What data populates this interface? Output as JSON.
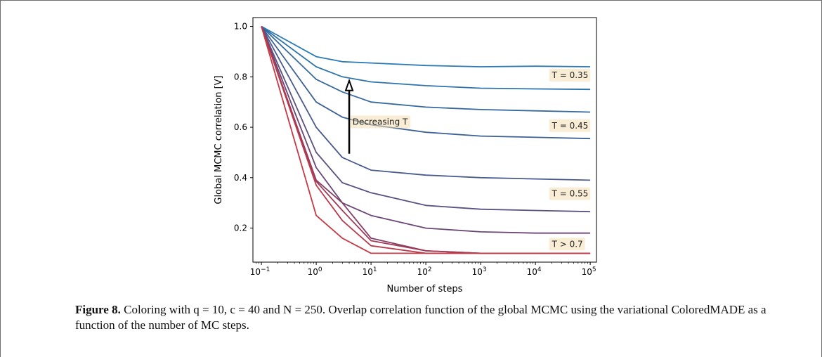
{
  "caption": {
    "label": "Figure 8.",
    "text": "Coloring with q = 10, c = 40 and N = 250. Overlap correlation function of the global MCMC using the variational ColoredMADE as a function of the number of MC steps."
  },
  "chart_data": {
    "type": "line",
    "title": "",
    "xlabel": "Number of steps",
    "ylabel": "Global MCMC correlation [V]",
    "xscale": "log",
    "xlim": [
      0.07,
      130000
    ],
    "ylim": [
      0.065,
      1.035
    ],
    "xticks": [
      {
        "value": 0.1,
        "base": "10",
        "exp": "−1"
      },
      {
        "value": 1,
        "base": "10",
        "exp": "0"
      },
      {
        "value": 10,
        "base": "10",
        "exp": "1"
      },
      {
        "value": 100,
        "base": "10",
        "exp": "2"
      },
      {
        "value": 1000,
        "base": "10",
        "exp": "3"
      },
      {
        "value": 10000,
        "base": "10",
        "exp": "4"
      },
      {
        "value": 100000,
        "base": "10",
        "exp": "5"
      }
    ],
    "yticks": [
      {
        "value": 0.2,
        "label": "0.2"
      },
      {
        "value": 0.4,
        "label": "0.4"
      },
      {
        "value": 0.6,
        "label": "0.6"
      },
      {
        "value": 0.8,
        "label": "0.8"
      },
      {
        "value": 1.0,
        "label": "1.0"
      }
    ],
    "grid": false,
    "series": [
      {
        "color": "#2c7bb6",
        "points": [
          [
            0.1,
            1.0
          ],
          [
            1,
            0.88
          ],
          [
            3,
            0.86
          ],
          [
            10,
            0.855
          ],
          [
            100,
            0.845
          ],
          [
            1000,
            0.84
          ],
          [
            10000,
            0.842
          ],
          [
            100000,
            0.84
          ]
        ]
      },
      {
        "color": "#2f73ab",
        "points": [
          [
            0.1,
            1.0
          ],
          [
            1,
            0.84
          ],
          [
            3,
            0.8
          ],
          [
            10,
            0.78
          ],
          [
            100,
            0.765
          ],
          [
            1000,
            0.755
          ],
          [
            10000,
            0.752
          ],
          [
            100000,
            0.75
          ]
        ]
      },
      {
        "color": "#36699d",
        "points": [
          [
            0.1,
            1.0
          ],
          [
            1,
            0.79
          ],
          [
            3,
            0.74
          ],
          [
            10,
            0.7
          ],
          [
            100,
            0.68
          ],
          [
            1000,
            0.67
          ],
          [
            10000,
            0.665
          ],
          [
            100000,
            0.66
          ]
        ]
      },
      {
        "color": "#3d6196",
        "points": [
          [
            0.1,
            1.0
          ],
          [
            1,
            0.7
          ],
          [
            3,
            0.64
          ],
          [
            10,
            0.61
          ],
          [
            100,
            0.58
          ],
          [
            1000,
            0.565
          ],
          [
            10000,
            0.56
          ],
          [
            100000,
            0.555
          ]
        ]
      },
      {
        "color": "#4a5a8d",
        "points": [
          [
            0.1,
            1.0
          ],
          [
            1,
            0.6
          ],
          [
            3,
            0.48
          ],
          [
            10,
            0.43
          ],
          [
            100,
            0.41
          ],
          [
            1000,
            0.4
          ],
          [
            10000,
            0.395
          ],
          [
            100000,
            0.39
          ]
        ]
      },
      {
        "color": "#5a5183",
        "points": [
          [
            0.1,
            1.0
          ],
          [
            1,
            0.5
          ],
          [
            3,
            0.38
          ],
          [
            10,
            0.34
          ],
          [
            100,
            0.29
          ],
          [
            1000,
            0.275
          ],
          [
            10000,
            0.27
          ],
          [
            100000,
            0.265
          ]
        ]
      },
      {
        "color": "#6a4776",
        "points": [
          [
            0.1,
            1.0
          ],
          [
            1,
            0.44
          ],
          [
            3,
            0.3
          ],
          [
            10,
            0.25
          ],
          [
            100,
            0.2
          ],
          [
            1000,
            0.185
          ],
          [
            10000,
            0.18
          ],
          [
            100000,
            0.18
          ]
        ]
      },
      {
        "color": "#843e66",
        "points": [
          [
            0.1,
            1.0
          ],
          [
            1,
            0.39
          ],
          [
            3,
            0.3
          ],
          [
            10,
            0.16
          ],
          [
            100,
            0.11
          ],
          [
            1000,
            0.1
          ],
          [
            10000,
            0.1
          ],
          [
            100000,
            0.1
          ]
        ]
      },
      {
        "color": "#a23a55",
        "points": [
          [
            0.1,
            1.0
          ],
          [
            1,
            0.385
          ],
          [
            3,
            0.27
          ],
          [
            10,
            0.15
          ],
          [
            100,
            0.11
          ],
          [
            1000,
            0.1
          ],
          [
            10000,
            0.1
          ],
          [
            100000,
            0.1
          ]
        ]
      },
      {
        "color": "#b8394b",
        "points": [
          [
            0.1,
            1.0
          ],
          [
            1,
            0.37
          ],
          [
            3,
            0.23
          ],
          [
            10,
            0.13
          ],
          [
            100,
            0.1
          ],
          [
            1000,
            0.1
          ],
          [
            10000,
            0.1
          ],
          [
            100000,
            0.1
          ]
        ]
      },
      {
        "color": "#c53945",
        "points": [
          [
            0.1,
            1.0
          ],
          [
            1,
            0.25
          ],
          [
            3,
            0.16
          ],
          [
            10,
            0.1
          ],
          [
            100,
            0.1
          ],
          [
            1000,
            0.1
          ],
          [
            10000,
            0.1
          ],
          [
            100000,
            0.1
          ]
        ]
      }
    ],
    "annotations": [
      {
        "text": "T = 0.35",
        "x": 20000,
        "y": 0.805
      },
      {
        "text": "T = 0.45",
        "x": 20000,
        "y": 0.605
      },
      {
        "text": "T = 0.55",
        "x": 20000,
        "y": 0.335
      },
      {
        "text": "T > 0.7",
        "x": 20000,
        "y": 0.135
      },
      {
        "text": "Decreasing T",
        "x": 4.6,
        "y": 0.62
      }
    ],
    "arrow": {
      "from": [
        4,
        0.495
      ],
      "to": [
        4,
        0.785
      ]
    }
  }
}
